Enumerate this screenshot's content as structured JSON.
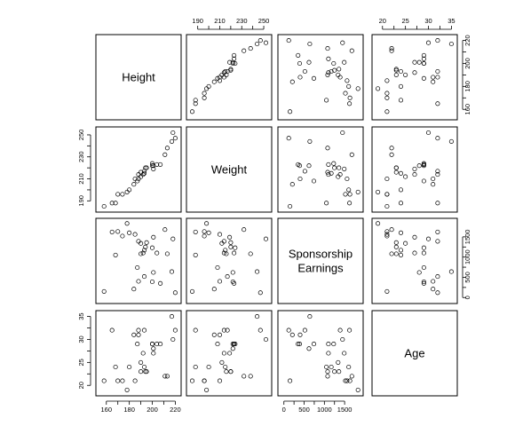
{
  "chart_data": {
    "type": "scatter",
    "subtype": "scatterplot-matrix",
    "variables": [
      {
        "key": "height",
        "label": "Height",
        "range": [
          154,
          222
        ],
        "ticks": [
          160,
          180,
          200,
          220
        ],
        "values": [
          194,
          213,
          170,
          220,
          190,
          211,
          178,
          207,
          201,
          188,
          204,
          184,
          193,
          218,
          168,
          158,
          193,
          217,
          174,
          201,
          188,
          195,
          187,
          190,
          180,
          185,
          200,
          192,
          200,
          165
        ]
      },
      {
        "key": "weight",
        "label": "Weight",
        "range": [
          183,
          254
        ],
        "ticks": [
          190,
          210,
          230,
          250
        ],
        "values": [
          220,
          238,
          196,
          247,
          212,
          232,
          198,
          223,
          219,
          210,
          223,
          205,
          215,
          252,
          188,
          185,
          217,
          244,
          196,
          222,
          214,
          220,
          208,
          216,
          200,
          210,
          222,
          214,
          224,
          188
        ]
      },
      {
        "key": "sponsorship",
        "label": "Sponsorship Earnings",
        "label_lines": [
          "Sponsorship",
          "Earnings"
        ],
        "range": [
          -60,
          1870
        ],
        "ticks": [
          0,
          500,
          1000,
          1500
        ],
        "values": [
          1250,
          1080,
          1630,
          120,
          1340,
          1680,
          1830,
          350,
          1490,
          400,
          1100,
          210,
          1170,
          1450,
          1050,
          150,
          520,
          640,
          1520,
          620,
          1390,
          1360,
          740,
          1080,
          1600,
          1560,
          390,
          1100,
          1230,
          1620
        ]
      },
      {
        "key": "age",
        "label": "Age",
        "range": [
          18.5,
          35.5
        ],
        "ticks": [
          20,
          25,
          30,
          35
        ],
        "values": [
          23,
          22,
          21,
          32,
          25,
          22,
          19,
          29,
          27,
          31,
          29,
          31,
          24,
          30,
          24,
          21,
          32,
          35,
          21,
          28,
          32,
          23,
          29,
          23,
          24,
          21,
          29,
          27,
          29,
          32
        ]
      }
    ],
    "tick_placement": {
      "height": "top",
      "weight": "left",
      "sponsorship": "right",
      "age": "bottom"
    },
    "top_axis_tick_labels": {
      "weight": [
        "190",
        "210",
        "230",
        "250"
      ],
      "age": [
        "20",
        "25",
        "30",
        "35"
      ]
    },
    "right_axis_tick_labels": {
      "height": [
        "160",
        "180",
        "200",
        "220"
      ],
      "sponsorship": [
        "0",
        "500",
        "1000",
        "1500"
      ]
    },
    "left_axis_tick_labels": {
      "weight": [
        "190",
        "210",
        "230",
        "250"
      ],
      "age": [
        "20",
        "25",
        "30",
        "35"
      ]
    },
    "bottom_axis_tick_labels": {
      "height": [
        "160",
        "180",
        "200",
        "220"
      ],
      "sponsorship": [
        "0",
        "500",
        "1000",
        "1500"
      ]
    },
    "marker": "open-circle",
    "grid": false,
    "legend": "none"
  }
}
